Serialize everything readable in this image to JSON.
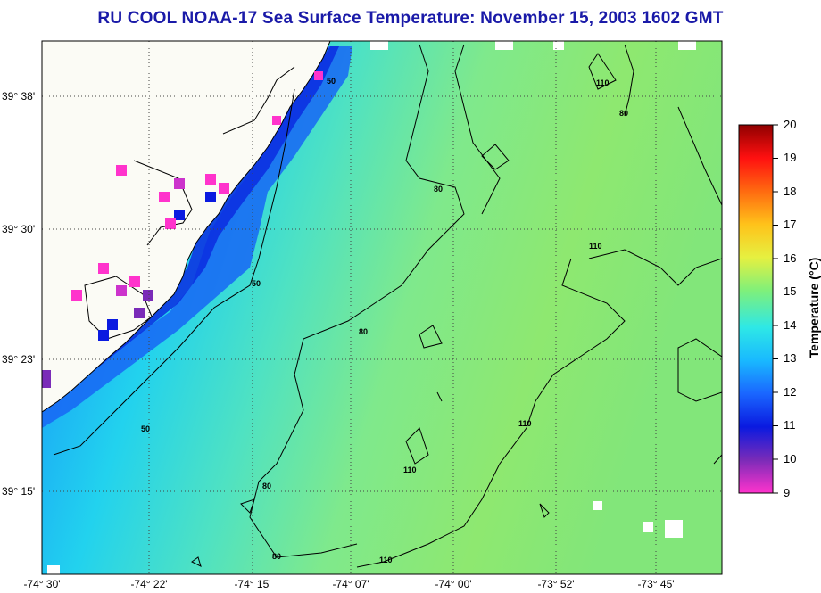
{
  "title": "RU COOL  NOAA-17  Sea Surface Temperature:  November 15, 2003 1602 GMT",
  "colorbar": {
    "label": "Temperature (°C)",
    "ticks": [
      "20",
      "19",
      "18",
      "17",
      "16",
      "15",
      "14",
      "13",
      "12",
      "11",
      "10",
      "9"
    ],
    "min": 9,
    "max": 20,
    "colors": [
      "#ff33cc",
      "#7a2bb8",
      "#0a1ae0",
      "#1a66ff",
      "#19b9ff",
      "#2ee8e6",
      "#7ff07a",
      "#e6f040",
      "#ffc21a",
      "#ff6a10",
      "#ff1010",
      "#900000"
    ]
  },
  "map": {
    "lat_labels": [
      "39° 38'",
      "39° 30'",
      "39° 23'",
      "39° 15'"
    ],
    "lon_labels": [
      "-74° 30'",
      "-74° 22'",
      "-74° 15'",
      "-74° 07'",
      "-74° 00'",
      "-73° 52'",
      "-73° 45'"
    ],
    "contour_labels": [
      "50",
      "50",
      "50",
      "80",
      "80",
      "80",
      "80",
      "110",
      "110",
      "110",
      "110",
      "80",
      "110"
    ],
    "land_color": "#fbfbf5",
    "nodata_color": "#ffffff"
  }
}
